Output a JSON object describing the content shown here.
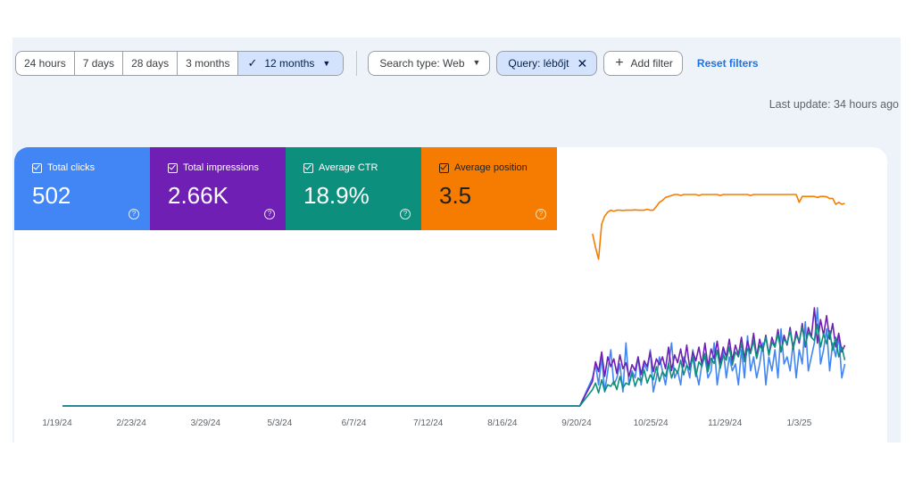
{
  "toolbar": {
    "date_ranges": [
      "24 hours",
      "7 days",
      "28 days",
      "3 months",
      "12 months"
    ],
    "selected_range": "12 months",
    "search_type": "Search type: Web",
    "query_filter": "Query: lébőjt",
    "add_filter": "Add filter",
    "reset_filters": "Reset filters"
  },
  "last_update": "Last update: 34 hours ago",
  "metrics": [
    {
      "label": "Total clicks",
      "value": "502",
      "color": "#4285f4"
    },
    {
      "label": "Total impressions",
      "value": "2.66K",
      "color": "#6f1fb3"
    },
    {
      "label": "Average CTR",
      "value": "18.9%",
      "color": "#0d8f7e"
    },
    {
      "label": "Average position",
      "value": "3.5",
      "color": "#f57c00"
    }
  ],
  "icons": {
    "check": "check-icon",
    "caret": "caret-down-icon",
    "close": "close-icon",
    "plus": "plus-icon",
    "help": "help-circle-icon"
  },
  "chart_data": {
    "type": "line",
    "x_ticks": [
      "1/19/24",
      "2/23/24",
      "3/29/24",
      "5/3/24",
      "6/7/24",
      "7/12/24",
      "8/16/24",
      "9/20/24",
      "10/25/24",
      "11/29/24",
      "1/3/25"
    ],
    "start_date": "2024-01-19",
    "days_per_tick": 35,
    "end_day": 373,
    "series": [
      {
        "id": "clicks",
        "color": "#4285f4",
        "ymax": 14,
        "zero_from_day": 0,
        "values": [
          4,
          6,
          3,
          7,
          2,
          5,
          8,
          3,
          4,
          6,
          2,
          9,
          3,
          5,
          4,
          7,
          3,
          6,
          5,
          8,
          2,
          4,
          7,
          5,
          3,
          6,
          9,
          4,
          5,
          3,
          7,
          6,
          4,
          8,
          5,
          3,
          6,
          7,
          4,
          5,
          9,
          3,
          6,
          8,
          4,
          7,
          5,
          6,
          3,
          8,
          4,
          10,
          5,
          7,
          4,
          6,
          9,
          3,
          7,
          5,
          8,
          4,
          11,
          6,
          7,
          5,
          9,
          4,
          8,
          6,
          12,
          5,
          7,
          9,
          14,
          6,
          8,
          11,
          5,
          9,
          7,
          10,
          4,
          6
        ]
      },
      {
        "id": "impressions",
        "color": "#6f1fb3",
        "ymax": 100,
        "zero_from_day": 0,
        "values": [
          25,
          45,
          35,
          55,
          30,
          50,
          40,
          48,
          33,
          52,
          38,
          44,
          30,
          42,
          36,
          50,
          32,
          46,
          40,
          55,
          35,
          48,
          42,
          50,
          38,
          60,
          36,
          52,
          44,
          58,
          40,
          62,
          38,
          55,
          46,
          60,
          42,
          64,
          40,
          58,
          48,
          66,
          44,
          60,
          50,
          68,
          46,
          62,
          52,
          70,
          48,
          66,
          54,
          74,
          50,
          68,
          56,
          72,
          52,
          70,
          60,
          78,
          55,
          72,
          62,
          80,
          58,
          76,
          64,
          84,
          60,
          80,
          70,
          100,
          64,
          88,
          72,
          92,
          68,
          84,
          60,
          74,
          55,
          62
        ]
      },
      {
        "id": "ctr",
        "color": "#0d8f7e",
        "ymax": 60,
        "zero_from_day": 0,
        "values": [
          10,
          14,
          8,
          16,
          9,
          13,
          12,
          15,
          10,
          18,
          11,
          14,
          13,
          20,
          12,
          17,
          15,
          22,
          14,
          19,
          16,
          24,
          15,
          21,
          18,
          26,
          17,
          23,
          20,
          28,
          19,
          25,
          22,
          30,
          18,
          27,
          24,
          32,
          21,
          29,
          26,
          34,
          23,
          31,
          28,
          36,
          25,
          33,
          30,
          38,
          27,
          35,
          32,
          40,
          29,
          37,
          34,
          42,
          31,
          39,
          36,
          44,
          33,
          41,
          38,
          46,
          35,
          43,
          40,
          48,
          37,
          45,
          42,
          40,
          50,
          36,
          44,
          38,
          46,
          34,
          42,
          30,
          36,
          28
        ]
      },
      {
        "id": "position",
        "color": "#f57c00",
        "ymax": 10,
        "inverted": true,
        "zero_from_day": null,
        "values": [
          5.5,
          6.2,
          6.8,
          5.0,
          4.6,
          4.4,
          4.3,
          4.35,
          4.3,
          4.3,
          4.32,
          4.3,
          4.3,
          4.3,
          4.28,
          4.3,
          4.3,
          4.3,
          4.25,
          4.3,
          4.3,
          4.1,
          3.9,
          3.8,
          3.65,
          3.6,
          3.55,
          3.5,
          3.5,
          3.55,
          3.5,
          3.5,
          3.5,
          3.5,
          3.5,
          3.55,
          3.5,
          3.5,
          3.5,
          3.5,
          3.5,
          3.5,
          3.55,
          3.5,
          3.5,
          3.5,
          3.5,
          3.5,
          3.5,
          3.5,
          3.5,
          3.5,
          3.55,
          3.5,
          3.5,
          3.5,
          3.5,
          3.5,
          3.5,
          3.5,
          3.5,
          3.5,
          3.5,
          3.5,
          3.5,
          3.5,
          3.5,
          3.5,
          3.9,
          3.6,
          3.6,
          3.6,
          3.6,
          3.6,
          3.65,
          3.6,
          3.6,
          3.62,
          3.7,
          3.7,
          4.0,
          3.9,
          4.0,
          3.95
        ]
      }
    ],
    "data_start_day": 244,
    "grid": false,
    "legend": "none"
  }
}
